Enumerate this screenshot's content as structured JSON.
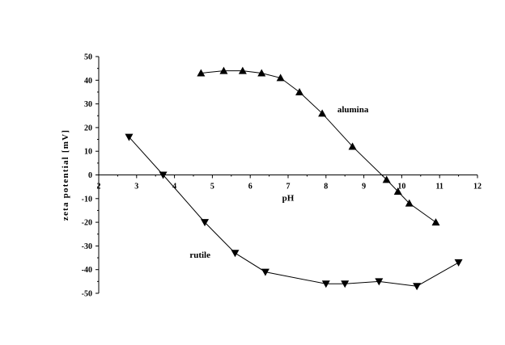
{
  "chart_data": {
    "type": "line",
    "xlabel": "pH",
    "ylabel": "zeta potential [mV]",
    "xlim": [
      2,
      12
    ],
    "ylim": [
      -50,
      50
    ],
    "xticks": [
      2,
      3,
      4,
      5,
      6,
      7,
      8,
      9,
      10,
      11,
      12
    ],
    "yticks": [
      -50,
      -40,
      -30,
      -20,
      -10,
      0,
      10,
      20,
      30,
      40,
      50
    ],
    "grid": false,
    "legend": "none",
    "series": [
      {
        "name": "alumina",
        "marker": "triangle-up",
        "color": "#000000",
        "x": [
          4.7,
          5.3,
          5.8,
          6.3,
          6.8,
          7.3,
          7.9,
          8.7,
          9.6,
          9.9,
          10.2,
          10.9
        ],
        "y": [
          43,
          44,
          44,
          43,
          41,
          35,
          26,
          12,
          -2,
          -7,
          -12,
          -20
        ]
      },
      {
        "name": "rutile",
        "marker": "triangle-down",
        "color": "#000000",
        "x": [
          2.8,
          3.7,
          4.8,
          5.6,
          6.4,
          8.0,
          8.5,
          9.4,
          10.4,
          11.5
        ],
        "y": [
          16,
          0,
          -20,
          -33,
          -41,
          -46,
          -46,
          -45,
          -47,
          -37
        ]
      }
    ],
    "annotations": [
      {
        "text": "alumina",
        "x": 8.3,
        "y": 26.5
      },
      {
        "text": "rutile",
        "x": 4.4,
        "y": -35
      }
    ]
  }
}
